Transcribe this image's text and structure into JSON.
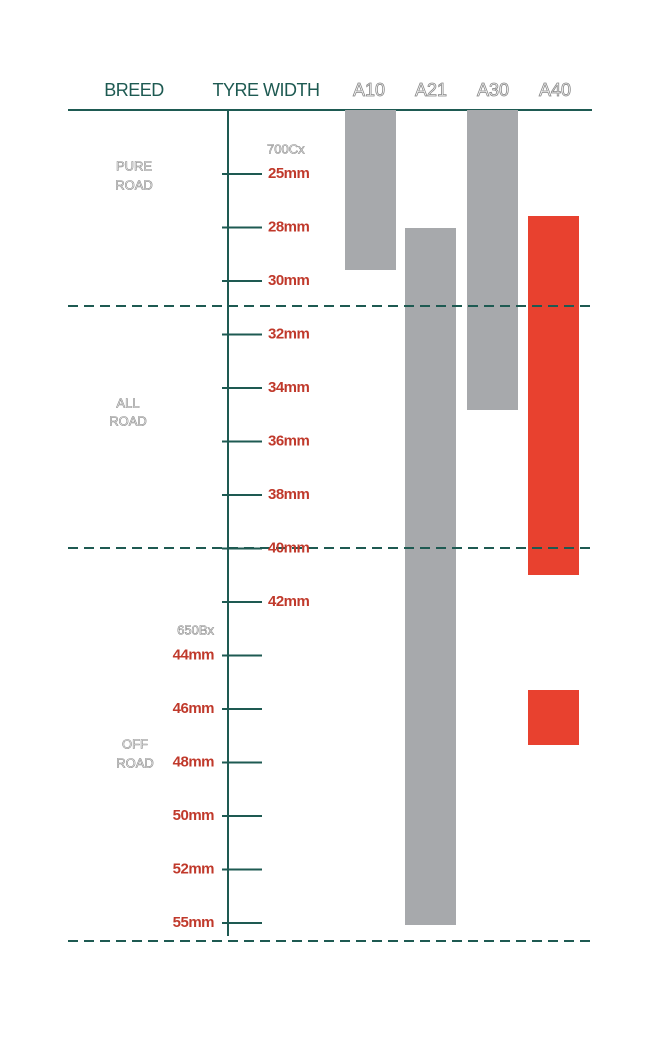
{
  "header": {
    "columns": [
      "BREED",
      "TYRE WIDTH",
      "A10",
      "A21",
      "A30",
      "A40"
    ]
  },
  "sections": [
    [
      "PURE",
      "ROAD"
    ],
    [
      "ALL",
      "ROAD"
    ],
    [
      "OFF",
      "ROAD"
    ]
  ],
  "rim_labels": [
    "700Cx",
    "650Bx"
  ],
  "ticks": [
    "25mm",
    "28mm",
    "30mm",
    "32mm",
    "34mm",
    "36mm",
    "38mm",
    "40mm",
    "42mm",
    "44mm",
    "46mm",
    "48mm",
    "50mm",
    "52mm",
    "55mm"
  ]
}
